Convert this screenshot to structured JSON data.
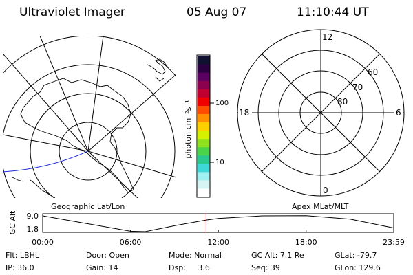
{
  "header": {
    "instrument": "Ultraviolet Imager",
    "date": "05 Aug 07",
    "time": "11:10:44 UT"
  },
  "geo_panel": {
    "caption": "Geographic Lat/Lon"
  },
  "colorbar": {
    "unit_label": "photon cm⁻²s⁻¹",
    "ticks": [
      "100",
      "10"
    ],
    "colors": [
      "#ffffff",
      "#d6f4f4",
      "#9ff0f0",
      "#3fd8d8",
      "#29c98d",
      "#4ad44a",
      "#8fe21d",
      "#d5f000",
      "#ffd000",
      "#ff9000",
      "#ff4d00",
      "#f00000",
      "#c00030",
      "#8c0050",
      "#5a0060",
      "#2a0040",
      "#101030"
    ]
  },
  "polar_panel": {
    "caption": "Apex MLat/MLT",
    "mlt_labels": [
      "12",
      "18",
      "6",
      "0"
    ],
    "mlat_labels": [
      "60",
      "70",
      "80"
    ]
  },
  "altitude_strip": {
    "axis_label": "GC Alt",
    "y_ticks": [
      "9.0",
      "1.8"
    ],
    "x_ticks": [
      "00:00",
      "06:00",
      "12:00",
      "18:00",
      "23:59"
    ],
    "marker_color": "#e00000"
  },
  "footer": {
    "filter": "Flt: LBHL",
    "door": "Door: Open",
    "mode": "Mode: Normal",
    "gc_alt": "GC Alt: 7.1 Re",
    "glat": "GLat: -79.7",
    "ip": "IP: 36.0",
    "gain": "Gain: 14",
    "dsp": "Dsp:     3.6",
    "seq": "Seq: 39",
    "glon": "GLon: 129.6"
  },
  "chart_data": {
    "type": "line",
    "title": "",
    "xlabel": "",
    "ylabel": "GC Alt",
    "x": [
      "00:00",
      "03:00",
      "06:00",
      "07:00",
      "09:00",
      "11:10",
      "12:00",
      "15:00",
      "18:00",
      "21:00",
      "23:59"
    ],
    "series": [
      {
        "values": [
          9.0,
          5.5,
          2.0,
          1.8,
          4.5,
          7.1,
          7.8,
          9.0,
          9.1,
          7.5,
          3.5
        ]
      }
    ],
    "ylim": [
      1.8,
      9.0
    ],
    "current_time": "11:10"
  }
}
